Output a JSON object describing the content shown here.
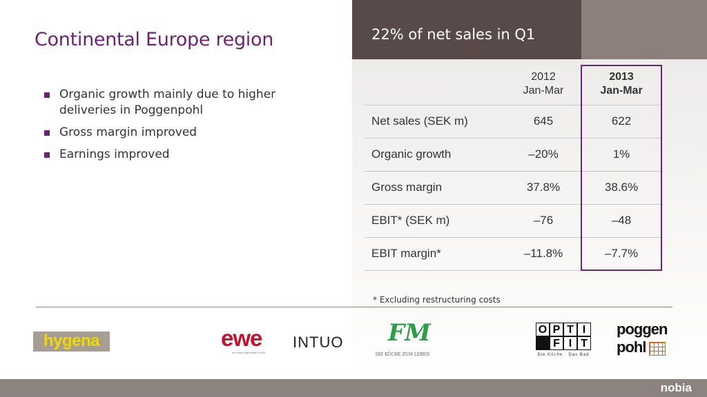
{
  "header": {
    "title": "22% of net sales in Q1"
  },
  "title": "Continental Europe region",
  "bullets": [
    "Organic growth mainly due to higher deliveries in Poggenpohl",
    "Gross margin improved",
    "Earnings improved"
  ],
  "table": {
    "col1": {
      "year": "2012",
      "period": "Jan-Mar"
    },
    "col2": {
      "year": "2013",
      "period": "Jan-Mar"
    },
    "rows": [
      {
        "label": "Net sales (SEK m)",
        "v2012": "645",
        "v2013": "622"
      },
      {
        "label": "Organic growth",
        "v2012": "–20%",
        "v2013": "1%"
      },
      {
        "label": "Gross margin",
        "v2012": "37.8%",
        "v2013": "38.6%"
      },
      {
        "label": "EBIT* (SEK m)",
        "v2012": "–76",
        "v2013": "–48"
      },
      {
        "label": "EBIT margin*",
        "v2012": "–11.8%",
        "v2013": "–7.7%"
      }
    ]
  },
  "footnote": "* Excluding restructuring costs",
  "logos": {
    "hygena": "hygena",
    "ewe": "ewe",
    "ewe_tagline": "und nicht irgendeine Küche",
    "intuo": "INTUO",
    "fm": "FM",
    "fm_tagline": "DIE KÜCHE ZUM LEBEN",
    "optifit_row1": [
      "O",
      "P",
      "T",
      "I"
    ],
    "optifit_row2": [
      "F",
      "I",
      "T"
    ],
    "optifit_tagline": "Die Küche · Das Bad",
    "poggenpohl_1": "poggen",
    "poggenpohl_2": "pohl"
  },
  "brand": "nobia",
  "colors": {
    "accent": "#6a2470",
    "header_dark": "#574a48",
    "header_light": "#8c7f7c",
    "footer": "#8c8280"
  }
}
